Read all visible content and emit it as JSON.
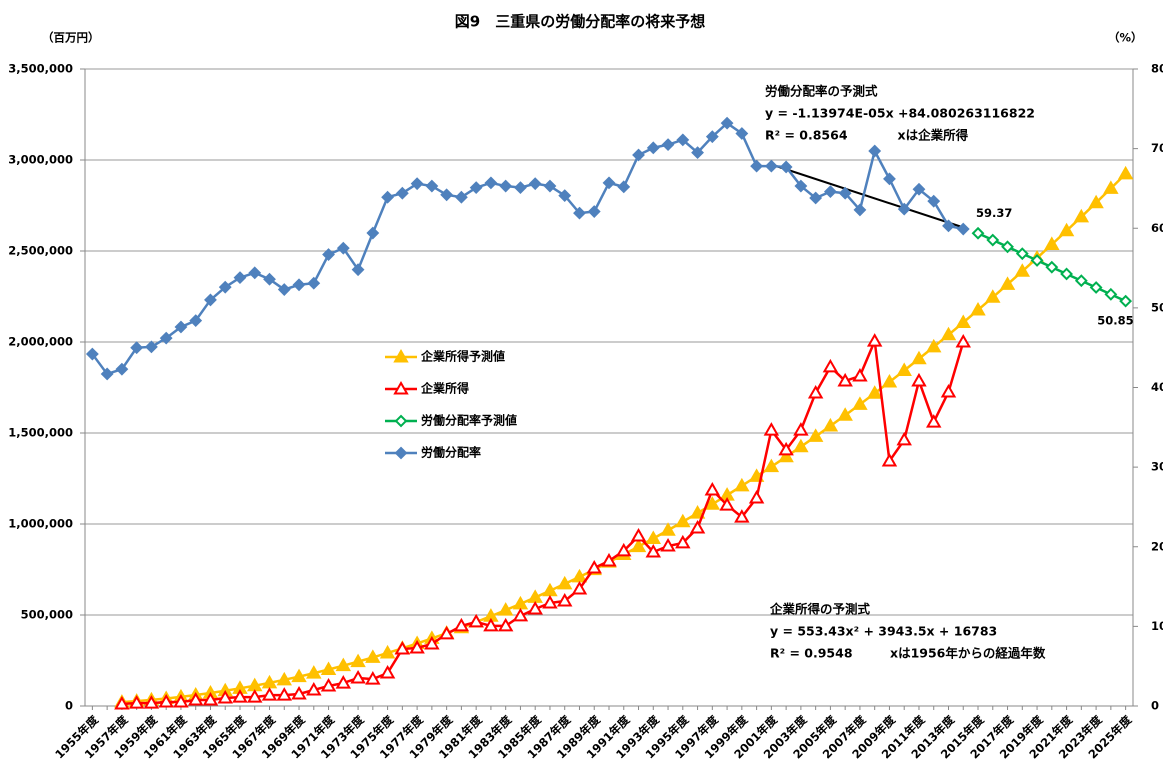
{
  "chart_data": {
    "type": "line",
    "title": "図9　三重県の労働分配率の将来予想",
    "y_label": "（百万円）",
    "y2_label": "（%）",
    "categories": [
      "1955年度",
      null,
      "1957年度",
      null,
      "1959年度",
      null,
      "1961年度",
      null,
      "1963年度",
      null,
      "1965年度",
      null,
      "1967年度",
      null,
      "1969年度",
      null,
      "1971年度",
      null,
      "1973年度",
      null,
      "1975年度",
      null,
      "1977年度",
      null,
      "1979年度",
      null,
      "1981年度",
      null,
      "1983年度",
      null,
      "1985年度",
      null,
      "1987年度",
      null,
      "1989年度",
      null,
      "1991年度",
      null,
      "1993年度",
      null,
      "1995年度",
      null,
      "1997年度",
      null,
      "1999年度",
      null,
      "2001年度",
      null,
      "2003年度",
      null,
      "2005年度",
      null,
      "2007年度",
      null,
      "2009年度",
      null,
      "2011年度",
      null,
      "2013年度",
      null,
      "2015年度",
      null,
      "2017年度",
      null,
      "2019年度",
      null,
      "2021年度",
      null,
      "2023年度",
      null,
      "2025年度"
    ],
    "series": [
      {
        "name": "企業所得予測値",
        "color": "#ffc000",
        "marker": "triangle",
        "filled": true,
        "values": [
          null,
          null,
          21280,
          26884,
          33595,
          41412,
          50337,
          60367,
          71506,
          83751,
          97103,
          111561,
          127127,
          143799,
          161579,
          180464,
          200458,
          221557,
          243764,
          267077,
          291498,
          317025,
          343660,
          371400,
          400248,
          430203,
          461265,
          493433,
          526708,
          561090,
          596580,
          633175,
          670878,
          709687,
          749604,
          790627,
          832758,
          875994,
          920339,
          965789,
          1012347,
          1060011,
          1108783,
          1158661,
          1209646,
          1261737,
          1314937,
          1369242,
          1424655,
          1481174,
          1538800,
          1597533,
          1657373,
          1718320,
          1780374,
          1843534,
          1907802,
          1973175,
          2039657,
          2107244,
          2175940,
          2245741,
          2316650,
          2388665,
          2461788,
          2536016,
          2611353,
          2687795,
          2765345,
          2844001,
          2923765
        ]
      },
      {
        "name": "企業所得",
        "color": "#ff0000",
        "marker": "triangle",
        "filled": false,
        "values": [
          null,
          null,
          11000,
          16000,
          16000,
          22000,
          22000,
          33000,
          33000,
          44000,
          49000,
          49000,
          60000,
          60000,
          66000,
          88000,
          110000,
          126000,
          154000,
          148000,
          181000,
          313000,
          319000,
          341000,
          396000,
          440000,
          462000,
          440000,
          440000,
          495000,
          533000,
          566000,
          577000,
          643000,
          758000,
          797000,
          852000,
          934000,
          846000,
          879000,
          896000,
          978000,
          1187000,
          1104000,
          1038000,
          1143000,
          1516000,
          1407000,
          1516000,
          1720000,
          1863000,
          1786000,
          1813000,
          2005000,
          1346000,
          1462000,
          1786000,
          1560000,
          1725000,
          2000000,
          null,
          null,
          null,
          null,
          null,
          null,
          null,
          null,
          null,
          null,
          null
        ]
      },
      {
        "name": "労働分配率予測値",
        "color": "#00b050",
        "marker": "diamond",
        "filled": false,
        "axis": "y2",
        "values": [
          null,
          null,
          null,
          null,
          null,
          null,
          null,
          null,
          null,
          null,
          null,
          null,
          null,
          null,
          null,
          null,
          null,
          null,
          null,
          null,
          null,
          null,
          null,
          null,
          null,
          null,
          null,
          null,
          null,
          null,
          null,
          null,
          null,
          null,
          null,
          null,
          null,
          null,
          null,
          null,
          null,
          null,
          null,
          null,
          null,
          null,
          null,
          null,
          null,
          null,
          null,
          null,
          null,
          null,
          null,
          null,
          null,
          null,
          null,
          null,
          59.37,
          58.52,
          57.67,
          56.81,
          55.96,
          55.11,
          54.26,
          53.41,
          52.56,
          51.7,
          50.85
        ]
      },
      {
        "name": "労働分配率",
        "color": "#4f81bd",
        "marker": "diamond",
        "filled": true,
        "axis": "y2",
        "values": [
          44.2,
          41.7,
          42.3,
          45.0,
          45.1,
          46.2,
          47.6,
          48.4,
          51.0,
          52.6,
          53.8,
          54.4,
          53.6,
          52.3,
          52.9,
          53.1,
          56.7,
          57.5,
          54.8,
          59.4,
          63.9,
          64.4,
          65.6,
          65.3,
          64.2,
          63.9,
          65.1,
          65.7,
          65.3,
          65.1,
          65.6,
          65.3,
          64.1,
          61.9,
          62.1,
          65.7,
          65.2,
          69.2,
          70.1,
          70.5,
          71.1,
          69.5,
          71.5,
          73.2,
          71.9,
          67.8,
          67.8,
          67.7,
          65.3,
          63.8,
          64.6,
          64.4,
          62.3,
          69.7,
          66.2,
          62.4,
          64.9,
          63.4,
          60.3,
          59.9,
          null,
          null,
          null,
          null,
          null,
          null,
          null,
          null,
          null,
          null,
          null
        ]
      }
    ],
    "ylim": [
      0,
      3500000
    ],
    "yticks": [
      0,
      {
        "value": 500000,
        "label": "500,000"
      },
      {
        "value": 1000000,
        "label": "1,000,000"
      },
      {
        "value": 1500000,
        "label": "1,500,000"
      },
      {
        "value": 2000000,
        "label": "2,000,000"
      },
      {
        "value": 2500000,
        "label": "2,500,000"
      },
      {
        "value": 3000000,
        "label": "3,000,000"
      },
      {
        "value": 3500000,
        "label": "3,500,000"
      }
    ],
    "y2lim": [
      0,
      80
    ],
    "y2ticks": [
      0,
      10,
      20,
      30,
      40,
      50,
      60,
      70,
      80
    ],
    "grid": true,
    "legend": "left",
    "annotations": [
      {
        "lines": [
          "労働分配率の予測式",
          "y = -1.13974E-05x +84.080263116822",
          "R² = 0.8564　　　　xは企業所得"
        ]
      },
      {
        "lines": [
          "企業所得の予測式",
          "y = 553.43x² + 3943.5x + 16783",
          "R² = 0.9548　　　xは1956年からの経過年数"
        ]
      }
    ]
  }
}
